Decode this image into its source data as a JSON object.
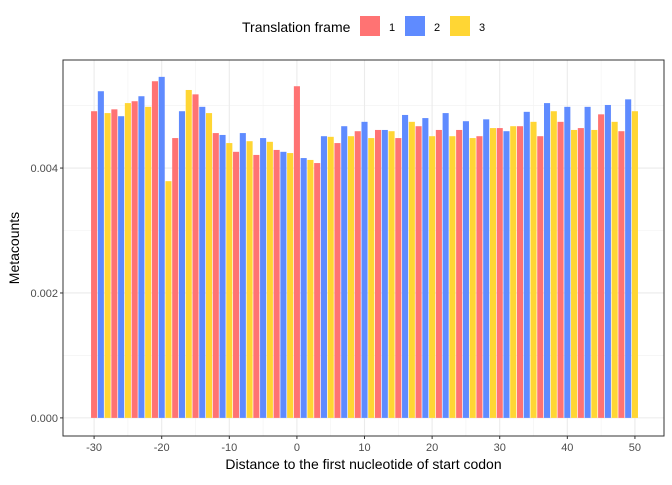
{
  "chart_data": {
    "type": "bar",
    "title": "",
    "xlabel": "Distance to the first nucleotide of start codon",
    "ylabel": "Metacounts",
    "xlim": [
      -34.6,
      54.3
    ],
    "ylim": [
      -0.00029,
      0.00573
    ],
    "x_ticks": [
      -30,
      -20,
      -10,
      0,
      10,
      20,
      30,
      40,
      50
    ],
    "x_tick_labels": [
      "-30",
      "-20",
      "-10",
      "0",
      "10",
      "20",
      "30",
      "40",
      "50"
    ],
    "y_ticks": [
      0,
      0.002,
      0.004
    ],
    "y_tick_labels": [
      "0.000",
      "0.002",
      "0.004"
    ],
    "grid": true,
    "legend": {
      "title": "Translation frame",
      "placement": "top",
      "entries": [
        {
          "label": "1",
          "color": "#FF7373"
        },
        {
          "label": "2",
          "color": "#5F8BFF"
        },
        {
          "label": "3",
          "color": "#FFD634"
        }
      ]
    },
    "x": [
      -30,
      -29,
      -28,
      -27,
      -26,
      -25,
      -24,
      -23,
      -22,
      -21,
      -20,
      -19,
      -18,
      -17,
      -16,
      -15,
      -14,
      -13,
      -12,
      -11,
      -10,
      -9,
      -8,
      -7,
      -6,
      -5,
      -4,
      -3,
      -2,
      -1,
      0,
      1,
      2,
      3,
      4,
      5,
      6,
      7,
      8,
      9,
      10,
      11,
      12,
      13,
      14,
      15,
      16,
      17,
      18,
      19,
      20,
      21,
      22,
      23,
      24,
      25,
      26,
      27,
      28,
      29,
      30,
      31,
      32,
      33,
      34,
      35,
      36,
      37,
      38,
      39,
      40,
      41,
      42,
      43,
      44,
      45,
      46,
      47,
      48,
      49,
      50
    ],
    "values": [
      0.00491,
      0.00523,
      0.00488,
      0.00494,
      0.00483,
      0.00504,
      0.00507,
      0.00515,
      0.00498,
      0.00539,
      0.00546,
      0.00379,
      0.00448,
      0.00491,
      0.00525,
      0.00518,
      0.00498,
      0.00488,
      0.00456,
      0.00453,
      0.0044,
      0.00426,
      0.00456,
      0.00443,
      0.00421,
      0.00448,
      0.00442,
      0.00429,
      0.00426,
      0.00424,
      0.00531,
      0.00416,
      0.00413,
      0.00408,
      0.00451,
      0.0045,
      0.0044,
      0.00467,
      0.00451,
      0.00459,
      0.00474,
      0.00448,
      0.00461,
      0.00461,
      0.00459,
      0.00448,
      0.00485,
      0.00474,
      0.00467,
      0.0048,
      0.00451,
      0.00461,
      0.00488,
      0.00451,
      0.00461,
      0.00475,
      0.00448,
      0.00451,
      0.00478,
      0.00464,
      0.00464,
      0.00459,
      0.00467,
      0.00467,
      0.0049,
      0.00474,
      0.00451,
      0.00504,
      0.00491,
      0.00474,
      0.00498,
      0.00461,
      0.00464,
      0.00498,
      0.00461,
      0.00486,
      0.00501,
      0.00474,
      0.00459,
      0.0051,
      0.00491
    ]
  }
}
